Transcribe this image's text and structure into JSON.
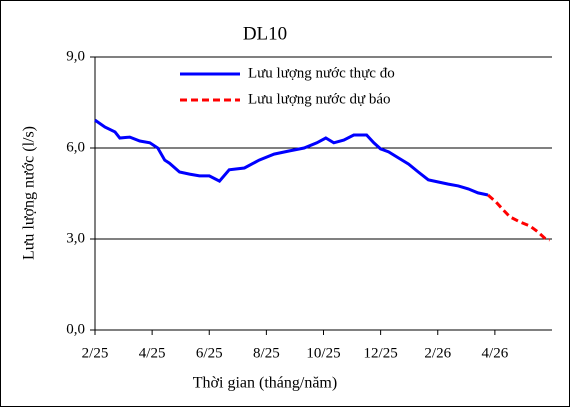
{
  "chart_data": {
    "type": "line",
    "title": "DL10",
    "x_label": "Thời gian (tháng/năm)",
    "y_label": "Lưu lượng nước (l/s)",
    "xlim": [
      0,
      16
    ],
    "xticks": [
      {
        "value": 0,
        "label": "2/25"
      },
      {
        "value": 2,
        "label": "4/25"
      },
      {
        "value": 4,
        "label": "6/25"
      },
      {
        "value": 6,
        "label": "8/25"
      },
      {
        "value": 8,
        "label": "10/25"
      },
      {
        "value": 10,
        "label": "12/25"
      },
      {
        "value": 12,
        "label": "2/26"
      },
      {
        "value": 14,
        "label": "4/26"
      }
    ],
    "ylim": [
      0,
      9
    ],
    "yticks": [
      {
        "value": 0,
        "label": "0,0"
      },
      {
        "value": 3,
        "label": "3,0"
      },
      {
        "value": 6,
        "label": "6,0"
      },
      {
        "value": 9,
        "label": "9,0"
      }
    ],
    "grid": true,
    "legend": "top",
    "series": [
      {
        "name": "Lưu lượng nước thực đo",
        "color": "#0000ff",
        "line_style": "solid",
        "x": [
          0,
          0.35,
          0.7,
          0.87,
          1.22,
          1.57,
          1.92,
          2.2,
          2.44,
          2.61,
          2.96,
          3.31,
          3.66,
          4.0,
          4.36,
          4.7,
          5.23,
          5.75,
          6.27,
          6.79,
          7.32,
          7.77,
          8.08,
          8.36,
          8.71,
          9.06,
          9.51,
          9.76,
          10.0,
          10.28,
          10.63,
          10.98,
          11.32,
          11.67,
          12.02,
          12.37,
          12.72,
          13.07,
          13.41,
          13.76
        ],
        "values": [
          6.92,
          6.69,
          6.53,
          6.33,
          6.36,
          6.23,
          6.17,
          6.0,
          5.6,
          5.5,
          5.21,
          5.14,
          5.08,
          5.08,
          4.91,
          5.28,
          5.34,
          5.6,
          5.8,
          5.9,
          6.0,
          6.17,
          6.33,
          6.17,
          6.26,
          6.43,
          6.43,
          6.17,
          5.97,
          5.87,
          5.67,
          5.47,
          5.21,
          4.95,
          4.88,
          4.81,
          4.75,
          4.65,
          4.52,
          4.45
        ]
      },
      {
        "name": "Lưu lượng nước dự báo",
        "color": "#ff0000",
        "line_style": "dashed",
        "x": [
          13.76,
          14.04,
          14.29,
          14.53,
          14.88,
          15.23,
          15.51,
          15.78,
          15.92
        ],
        "values": [
          4.45,
          4.22,
          3.96,
          3.73,
          3.56,
          3.43,
          3.23,
          3.0,
          2.97
        ]
      }
    ]
  }
}
